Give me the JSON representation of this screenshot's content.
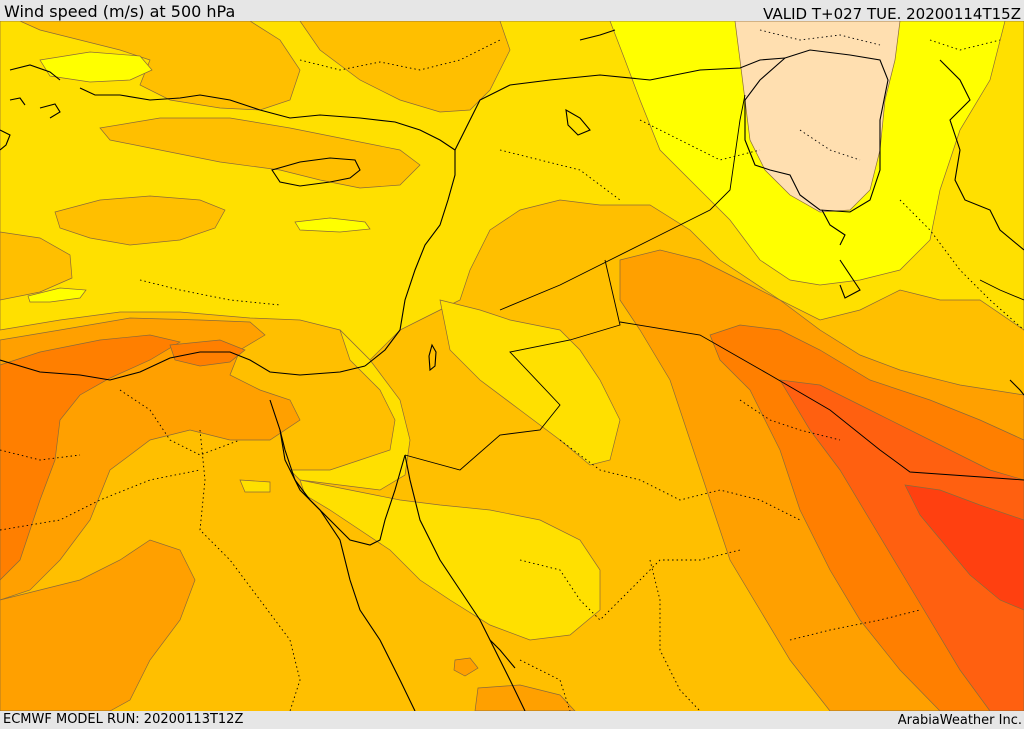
{
  "header": {
    "title": "Wind speed (m/s) at 500 hPa",
    "valid_time": "VALID T+027 TUE. 20200114T15Z"
  },
  "footer": {
    "model_run": "ECMWF MODEL RUN: 20200113T12Z",
    "credit": "ArabiaWeather Inc."
  },
  "map": {
    "region": "Eastern Mediterranean and Middle East",
    "projection": "regional",
    "fill_colors": {
      "band_1": "#ffdfb0",
      "band_2": "#ffff00",
      "band_3": "#ffe000",
      "band_4": "#ffbf00",
      "band_5": "#ffa000",
      "band_6": "#ff7f00",
      "band_7": "#ff6010",
      "band_8": "#ff4010"
    },
    "coastline_color": "#000000",
    "border_style": "dotted"
  }
}
